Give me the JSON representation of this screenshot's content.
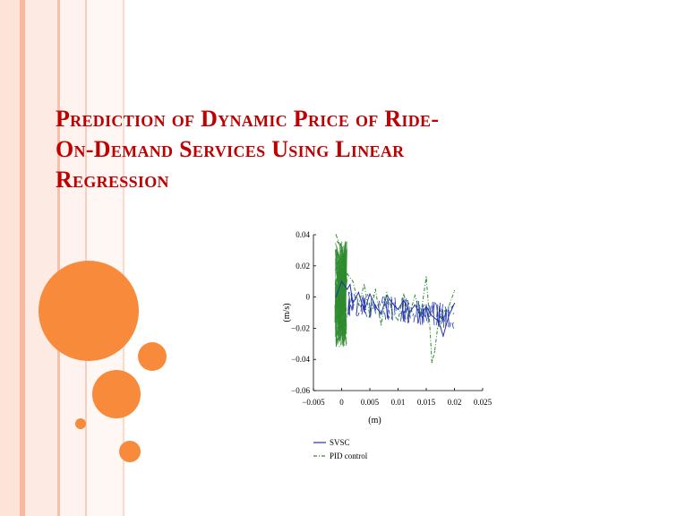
{
  "slide": {
    "title_lines": [
      "Prediction of Dynamic Price of Ride-",
      "On-Demand Services Using Linear",
      "Regression"
    ],
    "accent_colors": {
      "title": "#c00000",
      "circles": "#f88a3c",
      "stripes": "#fbd3c4"
    }
  },
  "chart_data": {
    "type": "line",
    "title": "",
    "xlabel": "(m)",
    "ylabel": "(m/s)",
    "xlim": [
      -0.005,
      0.025
    ],
    "ylim": [
      -0.06,
      0.04
    ],
    "x_ticks": [
      "−0.005",
      "0",
      "0.005",
      "0.01",
      "0.015",
      "0.02",
      "0.025"
    ],
    "y_ticks": [
      "0.04",
      "0.02",
      "0",
      "−0.02",
      "−0.04",
      "−0.06"
    ],
    "legend": [
      "SVSC",
      "PID control"
    ],
    "legend_position": "bottom-left",
    "series": [
      {
        "name": "SVSC",
        "color": "#2233aa",
        "style": "solid",
        "x": [
          -0.001,
          0.0,
          0.001,
          0.0015,
          0.002,
          0.003,
          0.004,
          0.005,
          0.006,
          0.007,
          0.008,
          0.009,
          0.01,
          0.011,
          0.012,
          0.013,
          0.014,
          0.015,
          0.016,
          0.017,
          0.0175,
          0.018,
          0.019,
          0.02
        ],
        "y": [
          0.0,
          0.01,
          0.005,
          0.008,
          -0.004,
          0.003,
          -0.009,
          0.002,
          -0.006,
          -0.011,
          0.001,
          -0.004,
          -0.008,
          -0.002,
          -0.01,
          -0.005,
          -0.012,
          -0.006,
          -0.012,
          -0.015,
          -0.019,
          -0.025,
          -0.012,
          -0.004
        ]
      },
      {
        "name": "PID control",
        "color": "#2e8b2e",
        "style": "dash-dot",
        "x": [
          -0.001,
          -0.0005,
          0.0,
          0.0005,
          0.001,
          0.002,
          0.003,
          0.004,
          0.005,
          0.006,
          0.007,
          0.008,
          0.009,
          0.01,
          0.011,
          0.012,
          0.013,
          0.014,
          0.015,
          0.0155,
          0.016,
          0.0165,
          0.017,
          0.018,
          0.019,
          0.02
        ],
        "y": [
          0.04,
          0.035,
          0.03,
          0.02,
          0.015,
          0.01,
          -0.005,
          0.008,
          -0.012,
          0.005,
          -0.018,
          0.003,
          -0.01,
          -0.015,
          0.002,
          -0.012,
          0.001,
          -0.012,
          0.013,
          -0.01,
          -0.042,
          -0.035,
          -0.02,
          -0.01,
          -0.006,
          0.004
        ]
      }
    ]
  }
}
